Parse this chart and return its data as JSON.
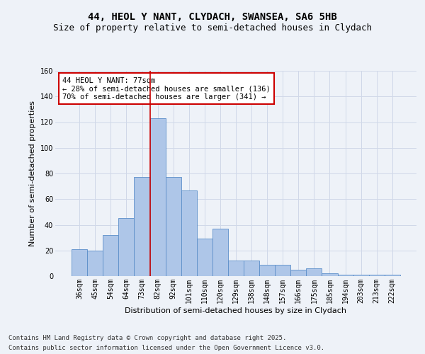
{
  "title_line1": "44, HEOL Y NANT, CLYDACH, SWANSEA, SA6 5HB",
  "title_line2": "Size of property relative to semi-detached houses in Clydach",
  "xlabel": "Distribution of semi-detached houses by size in Clydach",
  "ylabel": "Number of semi-detached properties",
  "categories": [
    "36sqm",
    "45sqm",
    "54sqm",
    "64sqm",
    "73sqm",
    "82sqm",
    "92sqm",
    "101sqm",
    "110sqm",
    "120sqm",
    "129sqm",
    "138sqm",
    "148sqm",
    "157sqm",
    "166sqm",
    "175sqm",
    "185sqm",
    "194sqm",
    "203sqm",
    "213sqm",
    "222sqm"
  ],
  "values": [
    21,
    20,
    32,
    45,
    77,
    123,
    77,
    67,
    29,
    37,
    12,
    12,
    9,
    9,
    5,
    6,
    2,
    1,
    1,
    1,
    1
  ],
  "bar_color": "#aec6e8",
  "bar_edge_color": "#5b8ec9",
  "grid_color": "#d0d8e8",
  "background_color": "#eef2f8",
  "vline_color": "#cc0000",
  "vline_x_index": 4.5,
  "annotation_title": "44 HEOL Y NANT: 77sqm",
  "annotation_line2": "← 28% of semi-detached houses are smaller (136)",
  "annotation_line3": "70% of semi-detached houses are larger (341) →",
  "annotation_box_color": "#cc0000",
  "ylim": [
    0,
    160
  ],
  "yticks": [
    0,
    20,
    40,
    60,
    80,
    100,
    120,
    140,
    160
  ],
  "footnote1": "Contains HM Land Registry data © Crown copyright and database right 2025.",
  "footnote2": "Contains public sector information licensed under the Open Government Licence v3.0.",
  "title_fontsize": 10,
  "subtitle_fontsize": 9,
  "axis_label_fontsize": 8,
  "tick_fontsize": 7,
  "annotation_fontsize": 7.5,
  "footnote_fontsize": 6.5
}
